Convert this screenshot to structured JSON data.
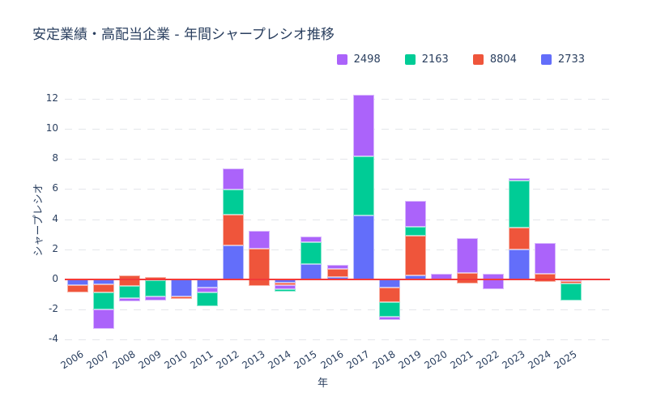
{
  "title": "安定業績・高配当企業 - 年間シャープレシオ推移",
  "colors": {
    "purple": "#ab63fa",
    "green": "#00cc96",
    "red": "#ef553b",
    "blue": "#636efa",
    "zero_line": "#f23a3a",
    "grid": "#e4e6ea",
    "text": "#2a3f5f"
  },
  "legend": {
    "items": [
      {
        "label": "2498",
        "color": "purple"
      },
      {
        "label": "2163",
        "color": "green"
      },
      {
        "label": "8804",
        "color": "red"
      },
      {
        "label": "2733",
        "color": "blue"
      }
    ]
  },
  "chart_data": {
    "type": "bar",
    "stacked": true,
    "title": "安定業績・高配当企業 - 年間シャープレシオ推移",
    "xlabel": "年",
    "ylabel": "シャープレシオ",
    "ylim": [
      -4,
      12
    ],
    "yticks": [
      -4,
      -2,
      0,
      2,
      4,
      6,
      8,
      10,
      12
    ],
    "grid": "dashed",
    "zero_line": true,
    "legend_position": "top-right",
    "categories": [
      "2006",
      "2007",
      "2008",
      "2009",
      "2010",
      "2011",
      "2012",
      "2013",
      "2014",
      "2015",
      "2016",
      "2017",
      "2018",
      "2019",
      "2020",
      "2021",
      "2022",
      "2023",
      "2024",
      "2025"
    ],
    "series": [
      {
        "name": "2498",
        "color": "purple",
        "values": [
          0,
          -1.32,
          -0.22,
          -0.25,
          0,
          -0.37,
          1.39,
          1.2,
          -0.26,
          0.41,
          0.27,
          4.08,
          -0.23,
          1.74,
          0.43,
          2.27,
          -0.99,
          0.14,
          2.06,
          -0.12
        ]
      },
      {
        "name": "2163",
        "color": "green",
        "values": [
          0,
          -1.1,
          -0.8,
          -1.1,
          0,
          -0.92,
          1.69,
          0,
          -0.16,
          1.43,
          0,
          3.9,
          -0.94,
          0.59,
          0,
          0,
          0,
          3.14,
          0,
          -1.15
        ]
      },
      {
        "name": "8804",
        "color": "red",
        "values": [
          -0.5,
          -0.55,
          -0.72,
          -0.2,
          -0.18,
          0,
          2.0,
          2.51,
          -0.17,
          0,
          0.55,
          0,
          -1.0,
          2.64,
          0,
          -0.72,
          0,
          1.47,
          -0.51,
          -0.13
        ]
      },
      {
        "name": "2733",
        "color": "blue",
        "values": [
          -0.36,
          -0.31,
          0,
          0,
          -1.13,
          -0.51,
          2.28,
          0,
          -0.21,
          1.02,
          0.15,
          4.26,
          -0.52,
          0.25,
          0,
          0,
          0,
          1.97,
          0,
          0
        ]
      }
    ],
    "bars": [
      {
        "year": "2006",
        "segments": [
          {
            "s": "2733",
            "c": "blue",
            "v": [
              0,
              -0.36
            ]
          },
          {
            "s": "8804",
            "c": "red",
            "v": [
              -0.36,
              -0.86
            ]
          }
        ]
      },
      {
        "year": "2007",
        "segments": [
          {
            "s": "2733",
            "c": "blue",
            "v": [
              0,
              -0.31
            ]
          },
          {
            "s": "8804",
            "c": "red",
            "v": [
              -0.31,
              -0.86
            ]
          },
          {
            "s": "2163",
            "c": "green",
            "v": [
              -0.86,
              -1.96
            ]
          },
          {
            "s": "2498",
            "c": "purple",
            "v": [
              -1.96,
              -3.28
            ]
          }
        ]
      },
      {
        "year": "2008",
        "segments": [
          {
            "s": "8804",
            "c": "red",
            "v": [
              0.27,
              -0.45
            ]
          },
          {
            "s": "2163",
            "c": "green",
            "v": [
              -0.45,
              -1.25
            ]
          },
          {
            "s": "2498",
            "c": "purple",
            "v": [
              -1.25,
              -1.47
            ]
          }
        ]
      },
      {
        "year": "2009",
        "segments": [
          {
            "s": "8804",
            "c": "red",
            "v": [
              0.15,
              -0.05
            ]
          },
          {
            "s": "2163",
            "c": "green",
            "v": [
              -0.05,
              -1.15
            ]
          },
          {
            "s": "2498",
            "c": "purple",
            "v": [
              -1.15,
              -1.4
            ]
          }
        ]
      },
      {
        "year": "2010",
        "segments": [
          {
            "s": "2733",
            "c": "blue",
            "v": [
              0,
              -1.13
            ]
          },
          {
            "s": "8804",
            "c": "red",
            "v": [
              -1.13,
              -1.31
            ]
          }
        ]
      },
      {
        "year": "2011",
        "segments": [
          {
            "s": "2733",
            "c": "blue",
            "v": [
              0,
              -0.51
            ]
          },
          {
            "s": "2498",
            "c": "purple",
            "v": [
              -0.51,
              -0.88
            ]
          },
          {
            "s": "2163",
            "c": "green",
            "v": [
              -0.88,
              -1.8
            ]
          }
        ]
      },
      {
        "year": "2012",
        "segments": [
          {
            "s": "2498",
            "c": "purple",
            "v": [
              7.36,
              5.97
            ]
          },
          {
            "s": "2163",
            "c": "green",
            "v": [
              5.97,
              4.28
            ]
          },
          {
            "s": "8804",
            "c": "red",
            "v": [
              4.28,
              2.28
            ]
          },
          {
            "s": "2733",
            "c": "blue",
            "v": [
              2.28,
              0
            ]
          }
        ]
      },
      {
        "year": "2013",
        "segments": [
          {
            "s": "2498",
            "c": "purple",
            "v": [
              3.23,
              2.03
            ]
          },
          {
            "s": "8804",
            "c": "red",
            "v": [
              2.03,
              -0.46
            ]
          }
        ]
      },
      {
        "year": "2014",
        "segments": [
          {
            "s": "2733",
            "c": "blue",
            "v": [
              0,
              -0.21
            ]
          },
          {
            "s": "8804",
            "c": "red",
            "v": [
              -0.21,
              -0.38
            ]
          },
          {
            "s": "2498",
            "c": "purple",
            "v": [
              -0.38,
              -0.64
            ]
          },
          {
            "s": "2163",
            "c": "green",
            "v": [
              -0.64,
              -0.8
            ]
          }
        ]
      },
      {
        "year": "2015",
        "segments": [
          {
            "s": "2498",
            "c": "purple",
            "v": [
              2.86,
              2.45
            ]
          },
          {
            "s": "2163",
            "c": "green",
            "v": [
              2.45,
              1.02
            ]
          },
          {
            "s": "2733",
            "c": "blue",
            "v": [
              1.02,
              0
            ]
          }
        ]
      },
      {
        "year": "2016",
        "segments": [
          {
            "s": "2498",
            "c": "purple",
            "v": [
              0.97,
              0.7
            ]
          },
          {
            "s": "8804",
            "c": "red",
            "v": [
              0.7,
              0.15
            ]
          },
          {
            "s": "2733",
            "c": "blue",
            "v": [
              0.15,
              0
            ]
          }
        ]
      },
      {
        "year": "2017",
        "segments": [
          {
            "s": "2498",
            "c": "purple",
            "v": [
              12.24,
              8.16
            ]
          },
          {
            "s": "2163",
            "c": "green",
            "v": [
              8.16,
              4.26
            ]
          },
          {
            "s": "2733",
            "c": "blue",
            "v": [
              4.26,
              0
            ]
          }
        ]
      },
      {
        "year": "2018",
        "segments": [
          {
            "s": "2733",
            "c": "blue",
            "v": [
              0,
              -0.52
            ]
          },
          {
            "s": "8804",
            "c": "red",
            "v": [
              -0.52,
              -1.52
            ]
          },
          {
            "s": "2163",
            "c": "green",
            "v": [
              -1.52,
              -2.46
            ]
          },
          {
            "s": "2498",
            "c": "purple",
            "v": [
              -2.46,
              -2.69
            ]
          }
        ]
      },
      {
        "year": "2019",
        "segments": [
          {
            "s": "2498",
            "c": "purple",
            "v": [
              5.22,
              3.48
            ]
          },
          {
            "s": "2163",
            "c": "green",
            "v": [
              3.48,
              2.89
            ]
          },
          {
            "s": "8804",
            "c": "red",
            "v": [
              2.89,
              0.25
            ]
          },
          {
            "s": "2733",
            "c": "blue",
            "v": [
              0.25,
              0
            ]
          }
        ]
      },
      {
        "year": "2020",
        "segments": [
          {
            "s": "2498",
            "c": "purple",
            "v": [
              0.38,
              -0.05
            ]
          }
        ]
      },
      {
        "year": "2021",
        "segments": [
          {
            "s": "2498",
            "c": "purple",
            "v": [
              2.72,
              0.45
            ]
          },
          {
            "s": "8804",
            "c": "red",
            "v": [
              0.45,
              -0.27
            ]
          }
        ]
      },
      {
        "year": "2022",
        "segments": [
          {
            "s": "2498",
            "c": "purple",
            "v": [
              0.36,
              -0.63
            ]
          }
        ]
      },
      {
        "year": "2023",
        "segments": [
          {
            "s": "2498",
            "c": "purple",
            "v": [
              6.72,
              6.58
            ]
          },
          {
            "s": "2163",
            "c": "green",
            "v": [
              6.58,
              3.44
            ]
          },
          {
            "s": "8804",
            "c": "red",
            "v": [
              3.44,
              1.97
            ]
          },
          {
            "s": "2733",
            "c": "blue",
            "v": [
              1.97,
              0
            ]
          }
        ]
      },
      {
        "year": "2024",
        "segments": [
          {
            "s": "2498",
            "c": "purple",
            "v": [
              2.42,
              0.36
            ]
          },
          {
            "s": "8804",
            "c": "red",
            "v": [
              0.36,
              -0.15
            ]
          }
        ]
      },
      {
        "year": "2025",
        "segments": [
          {
            "s": "2498",
            "c": "purple",
            "v": [
              0,
              -0.12
            ]
          },
          {
            "s": "8804",
            "c": "red",
            "v": [
              -0.12,
              -0.25
            ]
          },
          {
            "s": "2163",
            "c": "green",
            "v": [
              -0.25,
              -1.4
            ]
          }
        ]
      }
    ]
  }
}
